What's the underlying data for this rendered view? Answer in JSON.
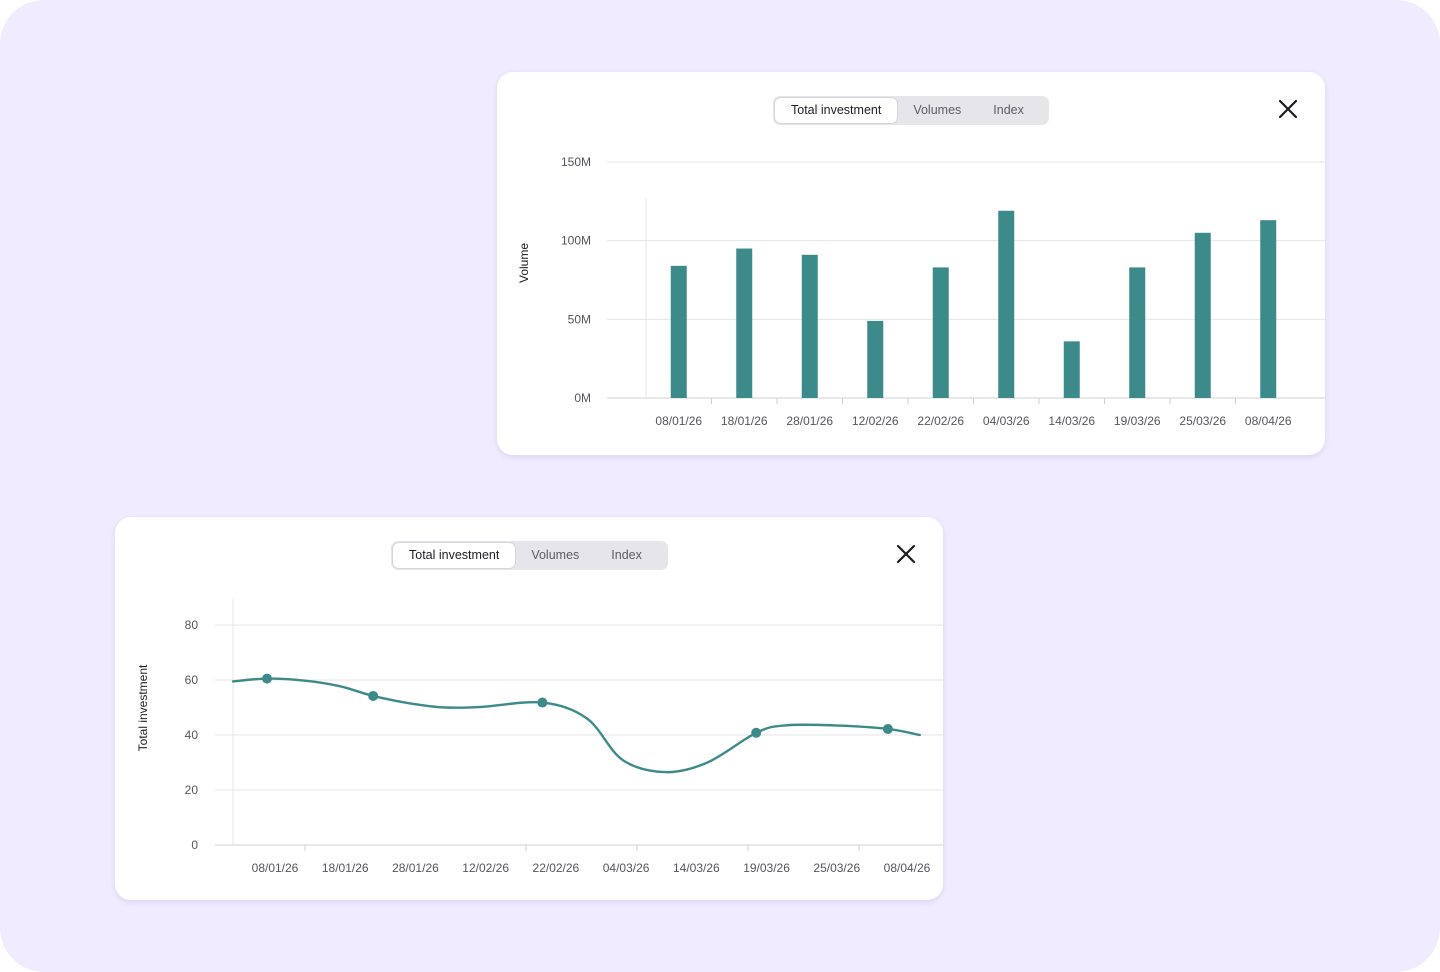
{
  "colors": {
    "background": "#f0ebff",
    "card": "#ffffff",
    "series": "#3d8a8a",
    "grid": "#e4e4e8",
    "tab_track": "#e6e6ea"
  },
  "top_panel": {
    "tabs": [
      {
        "label": "Total investment",
        "active": true
      },
      {
        "label": "Volumes",
        "active": false
      },
      {
        "label": "Index",
        "active": false
      }
    ],
    "close_icon": "close-icon"
  },
  "bottom_panel": {
    "tabs": [
      {
        "label": "Total investment",
        "active": true
      },
      {
        "label": "Volumes",
        "active": false
      },
      {
        "label": "Index",
        "active": false
      }
    ],
    "close_icon": "close-icon"
  },
  "chart_data": [
    {
      "type": "bar",
      "ylabel": "Volume",
      "ylim": [
        0,
        150
      ],
      "yticks": [
        0,
        50,
        100,
        150
      ],
      "ytick_labels": [
        "0M",
        "50M",
        "100M",
        "150M"
      ],
      "grid": true,
      "categories": [
        "08/01/26",
        "18/01/26",
        "28/01/26",
        "12/02/26",
        "22/02/26",
        "04/03/26",
        "14/03/26",
        "19/03/26",
        "25/03/26",
        "08/04/26"
      ],
      "values": [
        84,
        95,
        91,
        49,
        83,
        119,
        36,
        83,
        105,
        113
      ]
    },
    {
      "type": "line",
      "ylabel": "Total investment",
      "ylim": [
        0,
        80
      ],
      "yticks": [
        0,
        20,
        40,
        60,
        80
      ],
      "grid": true,
      "x_labels": [
        "08/01/26",
        "18/01/26",
        "28/01/26",
        "12/02/26",
        "22/02/26",
        "04/03/26",
        "14/03/26",
        "19/03/26",
        "25/03/26",
        "08/04/26"
      ],
      "x_range": [
        0,
        10
      ],
      "line": [
        {
          "x": 0.0,
          "y": 59.5
        },
        {
          "x": 0.48,
          "y": 60.5
        },
        {
          "x": 1.0,
          "y": 59.8
        },
        {
          "x": 1.5,
          "y": 57.8
        },
        {
          "x": 1.98,
          "y": 54.2
        },
        {
          "x": 2.5,
          "y": 51.5
        },
        {
          "x": 3.0,
          "y": 50.0
        },
        {
          "x": 3.5,
          "y": 50.2
        },
        {
          "x": 4.37,
          "y": 51.8
        },
        {
          "x": 5.0,
          "y": 46.0
        },
        {
          "x": 5.5,
          "y": 31.0
        },
        {
          "x": 6.1,
          "y": 26.5
        },
        {
          "x": 6.7,
          "y": 30.0
        },
        {
          "x": 7.39,
          "y": 40.8
        },
        {
          "x": 7.8,
          "y": 43.5
        },
        {
          "x": 8.5,
          "y": 43.5
        },
        {
          "x": 9.25,
          "y": 42.2
        },
        {
          "x": 9.7,
          "y": 40.0
        }
      ],
      "markers": [
        {
          "x": 0.48,
          "y": 60.5
        },
        {
          "x": 1.98,
          "y": 54.2
        },
        {
          "x": 4.37,
          "y": 51.8
        },
        {
          "x": 7.39,
          "y": 40.8
        },
        {
          "x": 9.25,
          "y": 42.2
        }
      ]
    }
  ]
}
